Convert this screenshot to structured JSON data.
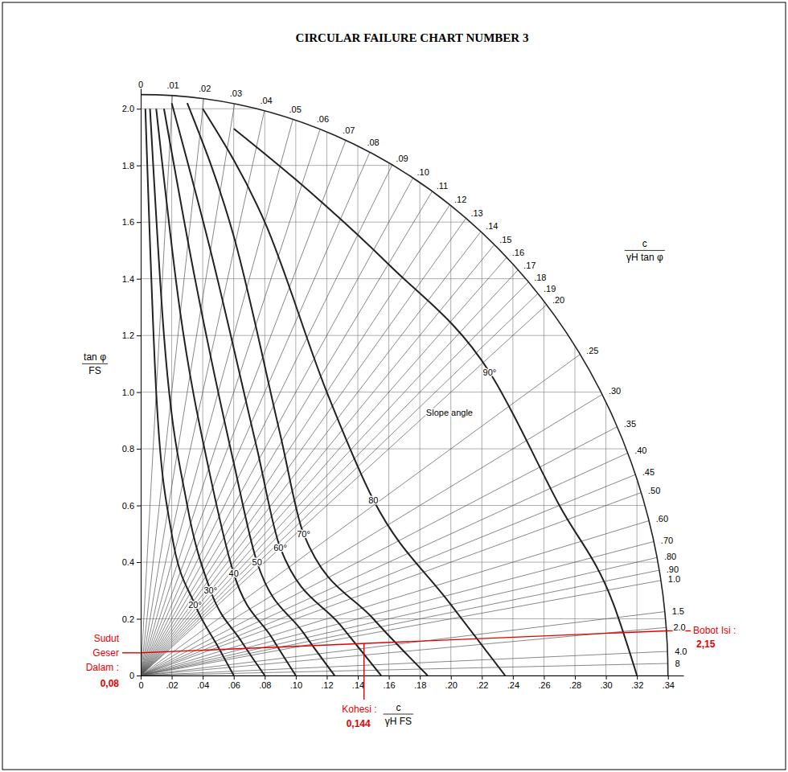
{
  "chart_data": {
    "type": "line",
    "title": "CIRCULAR FAILURE CHART NUMBER 3",
    "x_label": {
      "numerator": "c",
      "denominator": "γH FS"
    },
    "y_label": {
      "numerator": "tan φ",
      "denominator": "FS"
    },
    "xlim": [
      0,
      0.35
    ],
    "xticks": [
      0,
      {
        "value": 0.02,
        "label": ".02"
      },
      {
        "value": 0.04,
        "label": ".04"
      },
      {
        "value": 0.06,
        "label": ".06"
      },
      {
        "value": 0.08,
        "label": ".08"
      },
      {
        "value": 0.1,
        "label": ".10"
      },
      {
        "value": 0.12,
        "label": ".12"
      },
      {
        "value": 0.14,
        "label": ".14"
      },
      {
        "value": 0.16,
        "label": ".16"
      },
      {
        "value": 0.18,
        "label": ".18"
      },
      {
        "value": 0.2,
        "label": ".20"
      },
      {
        "value": 0.22,
        "label": ".22"
      },
      {
        "value": 0.24,
        "label": ".24"
      },
      {
        "value": 0.26,
        "label": ".26"
      },
      {
        "value": 0.28,
        "label": ".28"
      },
      {
        "value": 0.3,
        "label": ".30"
      },
      {
        "value": 0.32,
        "label": ".32"
      },
      {
        "value": 0.34,
        "label": ".34"
      }
    ],
    "ylim": [
      0,
      2.1
    ],
    "yticks": [
      0,
      0.2,
      0.4,
      0.6,
      0.8,
      {
        "value": 1,
        "label": "1.0"
      },
      1.2,
      1.4,
      1.6,
      1.8,
      {
        "value": 2,
        "label": "2.0"
      }
    ],
    "grid": true,
    "slope_angle_label": "Slope angle",
    "series": [
      {
        "name": "90°",
        "color": "#222222",
        "x": [
          0.06,
          0.1,
          0.16,
          0.225,
          0.27,
          0.305,
          0.32
        ],
        "values": [
          1.93,
          1.75,
          1.45,
          1.07,
          0.6,
          0.25,
          0
        ]
      },
      {
        "name": "80",
        "color": "#222222",
        "x": [
          0.04,
          0.08,
          0.12,
          0.15,
          0.2,
          0.235
        ],
        "values": [
          2.0,
          1.6,
          1.0,
          0.62,
          0.25,
          0
        ]
      },
      {
        "name": "70°",
        "color": "#222222",
        "x": [
          0.03,
          0.06,
          0.09,
          0.105,
          0.15,
          0.185
        ],
        "values": [
          2.02,
          1.55,
          0.85,
          0.5,
          0.2,
          0
        ]
      },
      {
        "name": "60°",
        "color": "#222222",
        "x": [
          0.02,
          0.045,
          0.075,
          0.09,
          0.13,
          0.155
        ],
        "values": [
          2.02,
          1.5,
          0.8,
          0.45,
          0.17,
          0
        ]
      },
      {
        "name": "50",
        "color": "#222222",
        "x": [
          0.015,
          0.035,
          0.06,
          0.075,
          0.105,
          0.125
        ],
        "values": [
          2.0,
          1.4,
          0.75,
          0.4,
          0.15,
          0
        ]
      },
      {
        "name": "40",
        "color": "#222222",
        "x": [
          0.01,
          0.025,
          0.045,
          0.06,
          0.085,
          0.1
        ],
        "values": [
          2.0,
          1.3,
          0.7,
          0.36,
          0.13,
          0
        ]
      },
      {
        "name": "30°",
        "color": "#222222",
        "x": [
          0.006,
          0.015,
          0.03,
          0.045,
          0.065,
          0.08
        ],
        "values": [
          2.0,
          1.2,
          0.6,
          0.3,
          0.12,
          0
        ]
      },
      {
        "name": "20°",
        "color": "#222222",
        "x": [
          0.003,
          0.01,
          0.02,
          0.035,
          0.05,
          0.06
        ],
        "values": [
          2.0,
          1.0,
          0.5,
          0.25,
          0.1,
          0
        ]
      }
    ],
    "ratio_scale": {
      "label": {
        "numerator": "c",
        "denominator": "γH tan φ"
      },
      "envelope": {
        "x": 0.34,
        "y": 2.05
      },
      "color": "#555555",
      "values": [
        0,
        0.01,
        0.02,
        0.03,
        0.04,
        0.05,
        0.06,
        0.07,
        0.08,
        0.09,
        0.1,
        0.11,
        0.12,
        0.13,
        0.14,
        0.15,
        0.16,
        0.17,
        0.18,
        0.19,
        0.2,
        0.25,
        0.3,
        0.35,
        0.4,
        0.45,
        0.5,
        0.6,
        0.7,
        0.8,
        0.9,
        1,
        1.5,
        2,
        4,
        8
      ],
      "value_labels": [
        "0",
        ".01",
        ".02",
        ".03",
        ".04",
        ".05",
        ".06",
        ".07",
        ".08",
        ".09",
        ".10",
        ".11",
        ".12",
        ".13",
        ".14",
        ".15",
        ".16",
        ".17",
        ".18",
        ".19",
        ".20",
        ".25",
        ".30",
        ".35",
        ".40",
        ".45",
        ".50",
        ".60",
        ".70",
        ".80",
        ".90",
        "1.0",
        "1.5",
        "2.0",
        "4.0",
        "8"
      ]
    },
    "solution": {
      "color": "#e60000",
      "friction": {
        "label": "Sudut Geser Dalam :",
        "value": 0.08,
        "value_label": "0,08"
      },
      "cohesion": {
        "label": "Kohesi :",
        "value": 0.144,
        "value_label": "0,144"
      },
      "unit_weight": {
        "label": "Bobot Isi :",
        "value": 2.15,
        "value_label": "2,15"
      }
    }
  }
}
